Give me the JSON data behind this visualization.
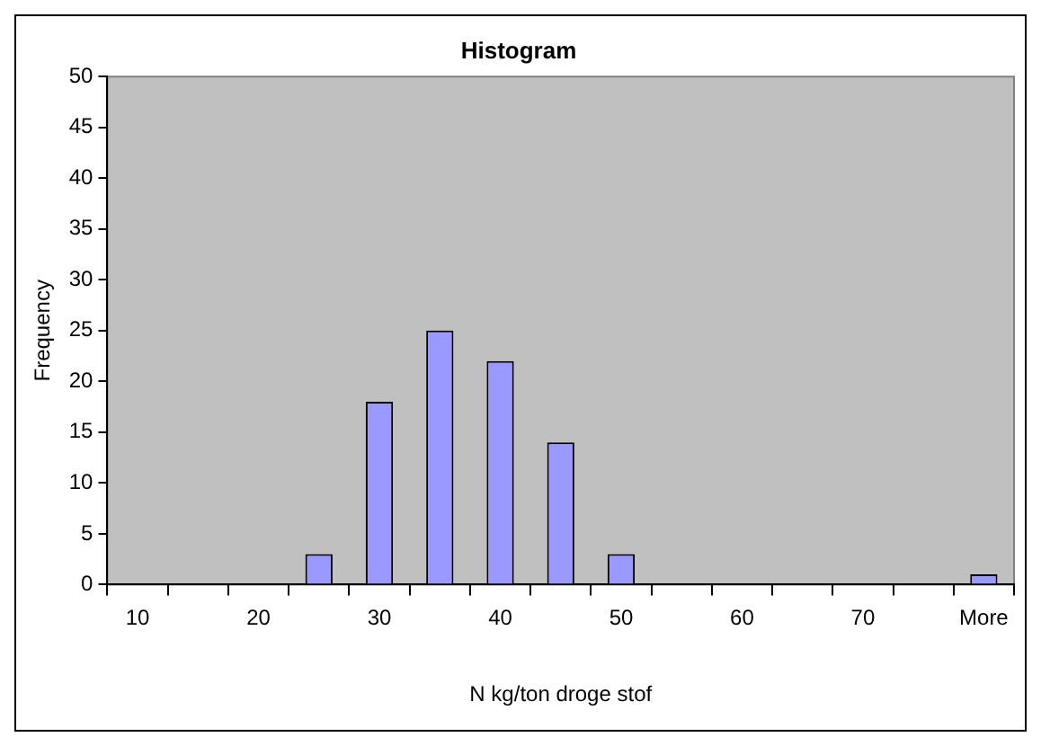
{
  "chart_data": {
    "type": "bar",
    "title": "Histogram",
    "xlabel": "N kg/ton droge stof",
    "ylabel": "Frequency",
    "categories": [
      "10",
      null,
      "20",
      null,
      "30",
      null,
      "40",
      null,
      "50",
      null,
      "60",
      null,
      "70",
      null,
      "More"
    ],
    "values": [
      0,
      0,
      0,
      3,
      18,
      25,
      22,
      14,
      3,
      0,
      0,
      0,
      0,
      0,
      1
    ],
    "color": "#9999ff",
    "ylim": [
      0,
      50
    ],
    "yticks": [
      0,
      5,
      10,
      15,
      20,
      25,
      30,
      35,
      40,
      45,
      50
    ],
    "grid": false,
    "legend": false
  }
}
